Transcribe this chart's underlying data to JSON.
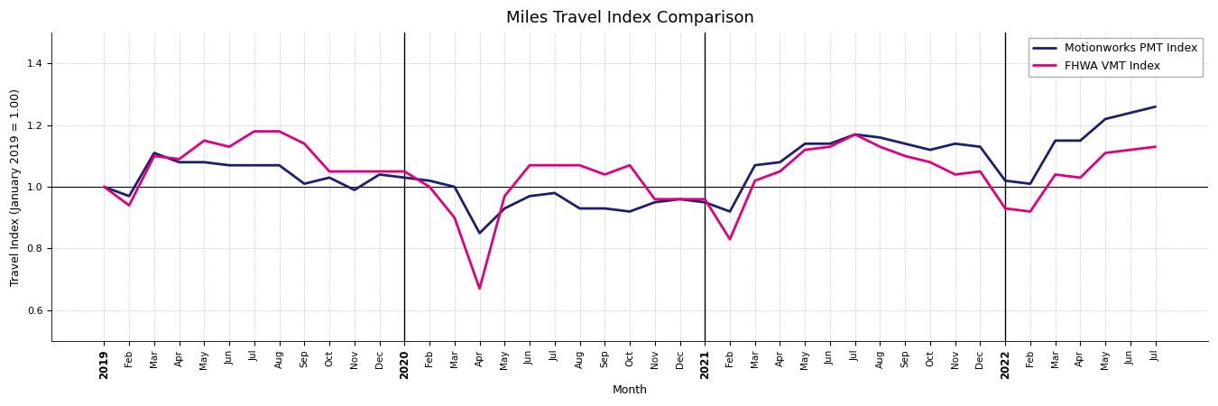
{
  "title": "Miles Travel Index Comparison",
  "xlabel": "Month",
  "ylabel": "Travel Index (January 2019 = 1.00)",
  "pmt_label": "Motionworks PMT Index",
  "vmt_label": "FHWA VMT Index",
  "pmt_color": "#1b1f6e",
  "vmt_color": "#e0007f",
  "pmt_linewidth": 2.0,
  "vmt_linewidth": 2.0,
  "ylim": [
    0.5,
    1.5
  ],
  "yticks": [
    0.6,
    0.8,
    1.0,
    1.2,
    1.4
  ],
  "background_color": "#ffffff",
  "grid_color": "#cccccc",
  "hline_y": 1.0,
  "year_indices": [
    0,
    12,
    24,
    36
  ],
  "year_vline_indices": [
    12,
    24,
    36
  ],
  "months": [
    "2019",
    "Feb",
    "Mar",
    "Apr",
    "May",
    "Jun",
    "Jul",
    "Aug",
    "Sep",
    "Oct",
    "Nov",
    "Dec",
    "2020",
    "Feb",
    "Mar",
    "Apr",
    "May",
    "Jun",
    "Jul",
    "Aug",
    "Sep",
    "Oct",
    "Nov",
    "Dec",
    "2021",
    "Feb",
    "Mar",
    "Apr",
    "May",
    "Jun",
    "Jul",
    "Aug",
    "Sep",
    "Oct",
    "Nov",
    "Dec",
    "2022",
    "Feb",
    "Mar",
    "Apr",
    "May",
    "Jun",
    "Jul"
  ],
  "pmt_values": [
    1.0,
    0.97,
    1.11,
    1.08,
    1.08,
    1.07,
    1.07,
    1.07,
    1.01,
    1.03,
    0.99,
    1.04,
    1.03,
    1.02,
    1.0,
    0.85,
    0.93,
    0.97,
    0.98,
    0.93,
    0.93,
    0.92,
    0.95,
    0.96,
    0.95,
    0.92,
    1.07,
    1.08,
    1.14,
    1.14,
    1.17,
    1.16,
    1.14,
    1.12,
    1.14,
    1.13,
    1.02,
    1.01,
    1.15,
    1.15,
    1.22,
    1.24,
    1.26
  ],
  "vmt_values": [
    1.0,
    0.94,
    1.1,
    1.09,
    1.15,
    1.13,
    1.18,
    1.18,
    1.14,
    1.05,
    1.05,
    1.05,
    1.05,
    1.0,
    0.9,
    0.67,
    0.97,
    1.07,
    1.07,
    1.07,
    1.04,
    1.07,
    0.96,
    0.96,
    0.96,
    0.83,
    1.02,
    1.05,
    1.12,
    1.13,
    1.17,
    1.13,
    1.1,
    1.08,
    1.04,
    1.05,
    0.93,
    0.92,
    1.04,
    1.03,
    1.11,
    1.12,
    1.13
  ],
  "figsize": [
    13.5,
    4.5
  ],
  "dpi": 100,
  "title_fontsize": 13,
  "axis_label_fontsize": 9,
  "tick_fontsize": 7.5,
  "legend_fontsize": 9
}
